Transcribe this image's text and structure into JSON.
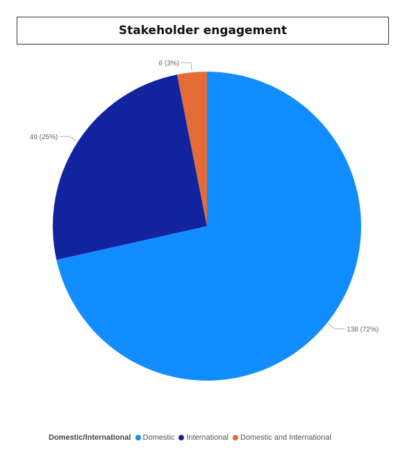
{
  "chart_data": {
    "type": "pie",
    "title": "Stakeholder engagement",
    "legend_title": "Domestic/International",
    "legend_position": "bottom",
    "slices": [
      {
        "label": "Domestic",
        "value": 138,
        "data_label": "138 (72%)",
        "color": "#118dff"
      },
      {
        "label": "International",
        "value": 49,
        "data_label": "49 (25%)",
        "color": "#12239e"
      },
      {
        "label": "Domestic and International",
        "value": 6,
        "data_label": "6 (3%)",
        "color": "#e66c37"
      }
    ]
  }
}
